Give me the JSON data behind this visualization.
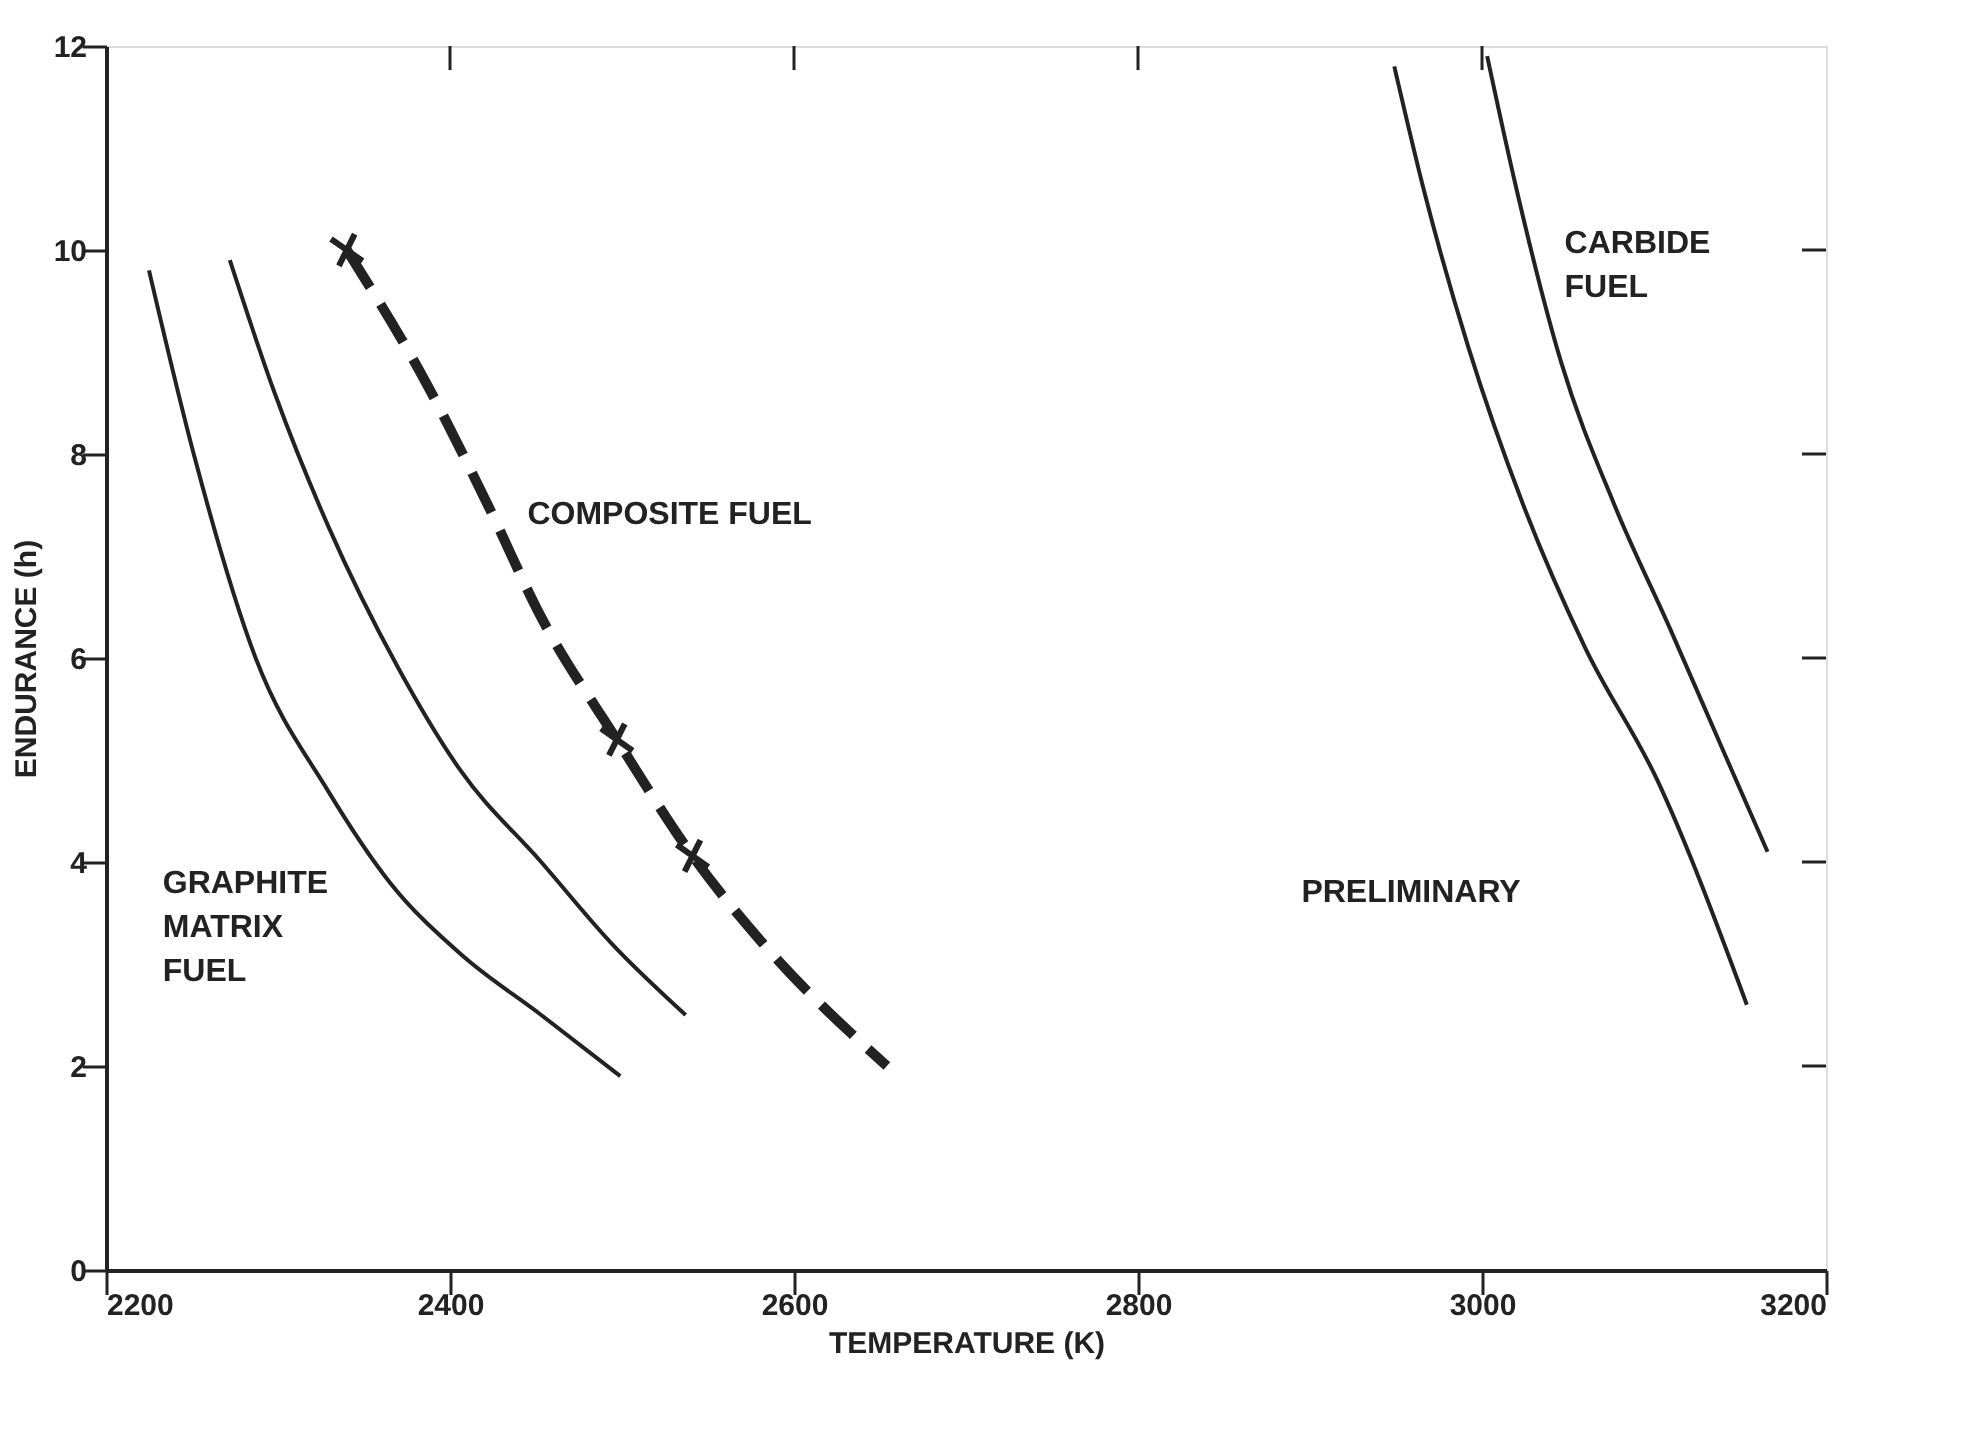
{
  "chart_data": {
    "type": "line",
    "xlabel": "TEMPERATURE (K)",
    "ylabel": "ENDURANCE (h)",
    "xlim": [
      2200,
      3200
    ],
    "xticks": [
      2200,
      2400,
      2600,
      2800,
      3000,
      3200
    ],
    "ylim": [
      0,
      12
    ],
    "yticks": [
      0,
      2,
      4,
      6,
      8,
      10,
      12
    ],
    "series": [
      {
        "color": "#222222",
        "line_style": "solid",
        "x": [
          2225,
          2251,
          2287,
          2329,
          2365,
          2406,
          2453,
          2499
        ],
        "values": [
          9.8,
          8.0,
          6.0,
          4.7,
          3.8,
          3.1,
          2.5,
          1.9
        ]
      },
      {
        "color": "#222222",
        "line_style": "solid",
        "x": [
          2272,
          2298,
          2329,
          2370,
          2406,
          2453,
          2494,
          2537
        ],
        "values": [
          9.9,
          8.6,
          7.3,
          5.9,
          4.9,
          4.0,
          3.2,
          2.5
        ]
      },
      {
        "color": "#222222",
        "line_style": "dashed",
        "x": [
          2340,
          2386,
          2422,
          2453,
          2497,
          2541,
          2582,
          2654
        ],
        "values": [
          10.0,
          8.7,
          7.5,
          6.4,
          5.2,
          4.06,
          3.2,
          2.0
        ]
      },
      {
        "type": "scatter",
        "color": "#222222",
        "marker": "cross",
        "x": [
          2340,
          2497,
          2541
        ],
        "values": [
          10.0,
          5.2,
          4.06
        ]
      },
      {
        "color": "#222222",
        "line_style": "solid",
        "x": [
          2949,
          2966,
          2992,
          3024,
          3060,
          3102,
          3154
        ],
        "values": [
          11.8,
          10.6,
          9.05,
          7.5,
          6.1,
          4.8,
          2.6
        ]
      },
      {
        "color": "#222222",
        "line_style": "solid",
        "x": [
          3003,
          3020,
          3046,
          3077,
          3109,
          3140,
          3166
        ],
        "values": [
          11.9,
          10.6,
          8.9,
          7.5,
          6.3,
          5.1,
          4.1
        ]
      }
    ],
    "annotations": [
      "COMPOSITE FUEL",
      "GRAPHITE\nMATRIX\nFUEL",
      "CARBIDE\nFUEL",
      "PRELIMINARY"
    ]
  }
}
